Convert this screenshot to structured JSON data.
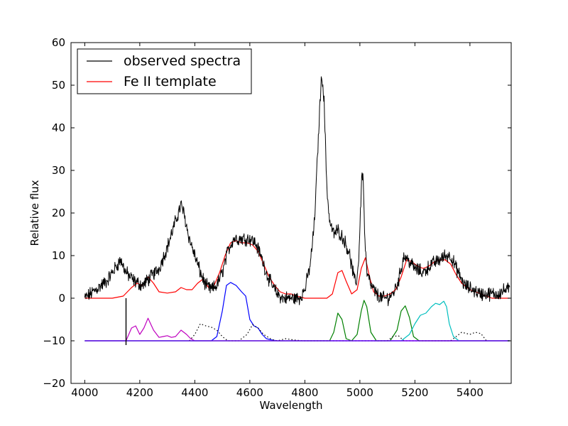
{
  "chart_data": {
    "type": "line",
    "xlabel": "Wavelength",
    "ylabel": "Relative flux",
    "xlim": [
      3950,
      5550
    ],
    "ylim": [
      -20,
      60
    ],
    "xticks": [
      4000,
      4200,
      4400,
      4600,
      4800,
      5000,
      5200,
      5400
    ],
    "yticks": [
      -20,
      -10,
      0,
      10,
      20,
      30,
      40,
      50,
      60
    ],
    "ytick_labels": [
      "−20",
      "−10",
      "0",
      "10",
      "20",
      "30",
      "40",
      "50",
      "60"
    ],
    "grid": false,
    "legend_position": "top-left",
    "legend": [
      {
        "label": "observed spectra",
        "color": "#000000"
      },
      {
        "label": "Fe II template",
        "color": "#ff0000"
      }
    ],
    "series": [
      {
        "name": "observed spectra",
        "color": "#000000",
        "noise": 1.3,
        "x": [
          4000,
          4040,
          4080,
          4110,
          4130,
          4150,
          4180,
          4210,
          4240,
          4270,
          4300,
          4320,
          4340,
          4350,
          4360,
          4380,
          4400,
          4420,
          4440,
          4460,
          4480,
          4500,
          4520,
          4540,
          4560,
          4580,
          4600,
          4620,
          4640,
          4660,
          4680,
          4700,
          4720,
          4740,
          4760,
          4780,
          4800,
          4820,
          4835,
          4845,
          4855,
          4862,
          4870,
          4880,
          4890,
          4905,
          4920,
          4940,
          4960,
          4975,
          4985,
          4995,
          5003,
          5008,
          5012,
          5018,
          5025,
          5040,
          5060,
          5080,
          5100,
          5120,
          5140,
          5160,
          5175,
          5200,
          5230,
          5260,
          5290,
          5310,
          5330,
          5350,
          5380,
          5410,
          5440,
          5470,
          5500,
          5530,
          5545
        ],
        "y": [
          0,
          2,
          4,
          7,
          9,
          6,
          4,
          3,
          5,
          7,
          12,
          16,
          20,
          22,
          20,
          14,
          10,
          6,
          3,
          2,
          3,
          6,
          11,
          14,
          14,
          14,
          14,
          13,
          10,
          6,
          3,
          1,
          0,
          0,
          0,
          0,
          2,
          8,
          18,
          32,
          46,
          53,
          46,
          26,
          18,
          15,
          16,
          14,
          11,
          6,
          3,
          8,
          22,
          30,
          28,
          14,
          6,
          3,
          1,
          0,
          0,
          1,
          4,
          10,
          9,
          7,
          6,
          8,
          9,
          10,
          10,
          7,
          3,
          2,
          1,
          1,
          1,
          2,
          2
        ]
      },
      {
        "name": "Fe II template",
        "color": "#ff0000",
        "x": [
          4000,
          4100,
          4140,
          4170,
          4190,
          4210,
          4230,
          4250,
          4270,
          4300,
          4330,
          4350,
          4370,
          4390,
          4410,
          4430,
          4450,
          4470,
          4490,
          4510,
          4530,
          4550,
          4570,
          4590,
          4610,
          4630,
          4650,
          4670,
          4690,
          4710,
          4730,
          4750,
          4770,
          4800,
          4850,
          4880,
          4900,
          4920,
          4935,
          4950,
          4970,
          4990,
          5005,
          5020,
          5035,
          5050,
          5070,
          5090,
          5110,
          5130,
          5150,
          5170,
          5190,
          5210,
          5230,
          5250,
          5270,
          5290,
          5310,
          5330,
          5350,
          5370,
          5400,
          5440,
          5480,
          5520,
          5545
        ],
        "y": [
          0,
          0,
          0.5,
          2.5,
          3.5,
          3,
          5,
          3.5,
          1.5,
          1.2,
          1.5,
          2.5,
          2,
          2,
          3.5,
          4.5,
          2.5,
          3,
          6,
          10,
          13,
          13.5,
          13,
          13,
          12.5,
          11,
          8,
          5,
          3,
          1.5,
          1,
          1,
          0.5,
          0,
          0,
          0,
          1,
          6,
          6.5,
          4,
          1,
          2,
          7,
          9.5,
          5,
          1.5,
          0.5,
          0.5,
          1,
          2,
          5,
          9,
          8.5,
          7.5,
          7,
          7.5,
          8.5,
          9,
          9,
          8,
          5.5,
          3.5,
          2,
          1,
          0,
          0,
          0
        ]
      },
      {
        "name": "",
        "color": "#bf00bf",
        "x": [
          4000,
          4150,
          4170,
          4185,
          4200,
          4215,
          4230,
          4250,
          4270,
          4285,
          4300,
          4315,
          4330,
          4350,
          4370,
          4385,
          4400,
          4440,
          5545
        ],
        "y": [
          -10,
          -10,
          -7,
          -6.5,
          -8.5,
          -7,
          -4.7,
          -7.5,
          -9.2,
          -9,
          -8.8,
          -9.2,
          -9,
          -7.5,
          -8.5,
          -9.5,
          -10,
          -10,
          -10
        ]
      },
      {
        "name": "",
        "color": "#0000ff",
        "x": [
          4000,
          4460,
          4480,
          4500,
          4515,
          4530,
          4550,
          4570,
          4585,
          4600,
          4615,
          4630,
          4645,
          4660,
          4680,
          4700,
          5545
        ],
        "y": [
          -10,
          -10,
          -9,
          -3,
          3,
          3.7,
          3,
          1.5,
          0.5,
          -5,
          -6.5,
          -7,
          -8.5,
          -9.5,
          -9.8,
          -10,
          -10
        ]
      },
      {
        "name": "",
        "color": "#008000",
        "x": [
          4000,
          4890,
          4905,
          4920,
          4935,
          4950,
          4970,
          4990,
          5005,
          5015,
          5025,
          5040,
          5060,
          5110,
          5135,
          5150,
          5165,
          5180,
          5195,
          5215,
          5545
        ],
        "y": [
          -10,
          -10,
          -8,
          -3.5,
          -5,
          -9.5,
          -10,
          -8.5,
          -3,
          -0.5,
          -2,
          -8,
          -10,
          -10,
          -7.5,
          -3,
          -1.8,
          -4.5,
          -9,
          -10,
          -10
        ]
      },
      {
        "name": "",
        "color": "#00bfbf",
        "x": [
          4000,
          5150,
          5180,
          5200,
          5220,
          5240,
          5260,
          5275,
          5290,
          5305,
          5315,
          5325,
          5340,
          5360,
          5545
        ],
        "y": [
          -10,
          -10,
          -8.5,
          -6,
          -4,
          -3.5,
          -2,
          -1.2,
          -1.5,
          -0.7,
          -2,
          -6,
          -9,
          -10,
          -10
        ]
      },
      {
        "name": "",
        "color": "#000000",
        "dashed": true,
        "x": [
          4380,
          4400,
          4420,
          4440,
          4460,
          4480,
          4500,
          4520,
          4560,
          4590,
          4610,
          4630,
          4650,
          4680,
          4700,
          4730,
          4760,
          4790,
          5100,
          5120,
          5140,
          5160,
          5330,
          5350,
          5370,
          5400,
          5420,
          5440,
          5460
        ],
        "y": [
          -10,
          -8.5,
          -6,
          -6.5,
          -6.8,
          -7.5,
          -9,
          -10,
          -10,
          -8.5,
          -6.2,
          -7,
          -8.5,
          -9.7,
          -10,
          -9.5,
          -9.8,
          -10,
          -10,
          -9,
          -8.8,
          -10,
          -10,
          -9,
          -8,
          -8.5,
          -8,
          -8.3,
          -10
        ]
      },
      {
        "name": "",
        "color": "#7f00ff",
        "x": [
          4000,
          5545
        ],
        "y": [
          -10,
          -10
        ]
      }
    ]
  }
}
